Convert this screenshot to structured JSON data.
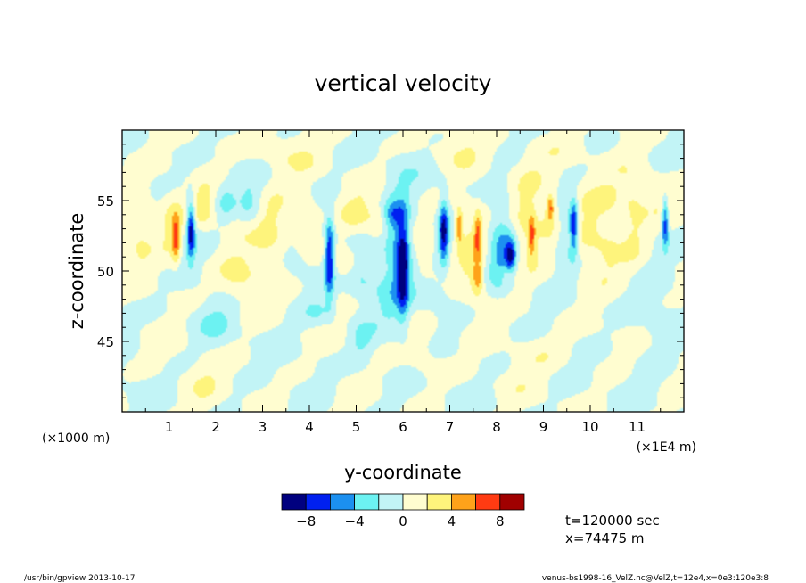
{
  "chart_data": {
    "type": "heatmap",
    "title": "vertical velocity",
    "xlabel": "y-coordinate",
    "ylabel": "z-coordinate",
    "x_unit_left": "(×1000 m)",
    "x_unit_right": "(×1E4 m)",
    "xlim": [
      0,
      12
    ],
    "ylim": [
      40,
      60
    ],
    "x_ticks": [
      1,
      2,
      3,
      4,
      5,
      6,
      7,
      8,
      9,
      10,
      11
    ],
    "x_tick_labels": [
      "1",
      "2",
      "3",
      "4",
      "5",
      "6",
      "7",
      "8",
      "9",
      "10",
      "11"
    ],
    "y_ticks": [
      45,
      50,
      55
    ],
    "y_tick_labels": [
      "45",
      "50",
      "55"
    ],
    "grid": false,
    "colorbar": {
      "levels": [
        -10,
        -8,
        -6,
        -4,
        -2,
        0,
        2,
        4,
        6,
        8,
        10
      ],
      "tick_values": [
        -8,
        -4,
        0,
        4,
        8
      ],
      "tick_labels": [
        "−8",
        "−4",
        "0",
        "4",
        "8"
      ],
      "colors": [
        "#00007f",
        "#0020f0",
        "#1c90f0",
        "#6cf2f2",
        "#c2f4f6",
        "#fffdd0",
        "#fef47c",
        "#fea21a",
        "#ff3b12",
        "#a00000"
      ]
    },
    "features": [
      {
        "y": 0.35,
        "z": 53.3,
        "sy": 0.25,
        "sz": 1.8,
        "amp": 2.5
      },
      {
        "y": 1.15,
        "z": 52.3,
        "sy": 0.06,
        "sz": 1.1,
        "amp": 6.0
      },
      {
        "y": 1.05,
        "z": 53.0,
        "sy": 0.18,
        "sz": 2.0,
        "amp": 2.5
      },
      {
        "y": 1.47,
        "z": 53.0,
        "sy": 0.06,
        "sz": 1.4,
        "amp": -8.5
      },
      {
        "y": 1.75,
        "z": 54.5,
        "sy": 0.15,
        "sz": 1.0,
        "amp": 2.5
      },
      {
        "y": 2.2,
        "z": 55.0,
        "sy": 0.15,
        "sz": 1.0,
        "amp": -2.3
      },
      {
        "y": 2.5,
        "z": 49.5,
        "sy": 0.3,
        "sz": 1.2,
        "amp": 2.4
      },
      {
        "y": 2.75,
        "z": 54.5,
        "sy": 0.18,
        "sz": 1.2,
        "amp": -2.6
      },
      {
        "y": 3.2,
        "z": 52.5,
        "sy": 0.35,
        "sz": 2.5,
        "amp": 2.8
      },
      {
        "y": 3.7,
        "z": 51.0,
        "sy": 0.25,
        "sz": 1.5,
        "amp": -2.2
      },
      {
        "y": 3.9,
        "z": 53.5,
        "sy": 0.2,
        "sz": 1.5,
        "amp": 2.5
      },
      {
        "y": 4.43,
        "z": 51.0,
        "sy": 0.07,
        "sz": 1.9,
        "amp": -8.5
      },
      {
        "y": 4.75,
        "z": 50.5,
        "sy": 0.2,
        "sz": 1.0,
        "amp": 2.5
      },
      {
        "y": 5.0,
        "z": 54.0,
        "sy": 0.25,
        "sz": 1.0,
        "amp": 2.4
      },
      {
        "y": 5.15,
        "z": 49.5,
        "sy": 0.25,
        "sz": 1.0,
        "amp": -2.2
      },
      {
        "y": 5.5,
        "z": 53.5,
        "sy": 0.18,
        "sz": 1.0,
        "amp": 2.5
      },
      {
        "y": 5.9,
        "z": 51.5,
        "sy": 0.25,
        "sz": 3.0,
        "amp": -5.5
      },
      {
        "y": 6.0,
        "z": 50.3,
        "sy": 0.08,
        "sz": 2.2,
        "amp": -7.5
      },
      {
        "y": 5.8,
        "z": 54.0,
        "sy": 0.15,
        "sz": 0.6,
        "amp": -3.0
      },
      {
        "y": 6.4,
        "z": 51.5,
        "sy": 0.2,
        "sz": 1.5,
        "amp": 2.6
      },
      {
        "y": 6.6,
        "z": 48.5,
        "sy": 0.3,
        "sz": 1.0,
        "amp": -2.2
      },
      {
        "y": 6.87,
        "z": 52.8,
        "sy": 0.07,
        "sz": 1.5,
        "amp": -8.5
      },
      {
        "y": 7.2,
        "z": 53.2,
        "sy": 0.05,
        "sz": 0.9,
        "amp": 5.5
      },
      {
        "y": 7.45,
        "z": 51.5,
        "sy": 0.25,
        "sz": 2.5,
        "amp": 2.6
      },
      {
        "y": 7.6,
        "z": 52.5,
        "sy": 0.05,
        "sz": 1.1,
        "amp": 5.0
      },
      {
        "y": 7.6,
        "z": 49.5,
        "sy": 0.08,
        "sz": 0.8,
        "amp": 4.5
      },
      {
        "y": 8.1,
        "z": 51.8,
        "sy": 0.2,
        "sz": 2.2,
        "amp": -4.5
      },
      {
        "y": 8.3,
        "z": 51.0,
        "sy": 0.08,
        "sz": 0.8,
        "amp": -7.0
      },
      {
        "y": 8.25,
        "z": 49.8,
        "sy": 0.12,
        "sz": 0.6,
        "amp": 3.0
      },
      {
        "y": 8.65,
        "z": 53.0,
        "sy": 0.25,
        "sz": 2.5,
        "amp": 2.8
      },
      {
        "y": 8.75,
        "z": 52.5,
        "sy": 0.05,
        "sz": 1.0,
        "amp": 5.0
      },
      {
        "y": 9.15,
        "z": 54.5,
        "sy": 0.05,
        "sz": 0.6,
        "amp": 5.0
      },
      {
        "y": 9.2,
        "z": 54.0,
        "sy": 0.2,
        "sz": 1.0,
        "amp": 2.5
      },
      {
        "y": 9.45,
        "z": 52.5,
        "sy": 0.15,
        "sz": 2.0,
        "amp": -3.2
      },
      {
        "y": 9.65,
        "z": 53.2,
        "sy": 0.06,
        "sz": 1.3,
        "amp": -8.0
      },
      {
        "y": 10.0,
        "z": 53.0,
        "sy": 0.2,
        "sz": 1.8,
        "amp": 2.5
      },
      {
        "y": 10.4,
        "z": 52.5,
        "sy": 0.2,
        "sz": 2.0,
        "amp": 2.6
      },
      {
        "y": 10.9,
        "z": 53.0,
        "sy": 0.2,
        "sz": 2.0,
        "amp": 2.4
      },
      {
        "y": 11.6,
        "z": 53.5,
        "sy": 0.05,
        "sz": 1.2,
        "amp": -7.5
      },
      {
        "y": 11.0,
        "z": 55.5,
        "sy": 0.8,
        "sz": 1.0,
        "amp": 1.3
      },
      {
        "y": 4.2,
        "z": 47.0,
        "sy": 0.25,
        "sz": 0.8,
        "amp": -2.2
      },
      {
        "y": 5.1,
        "z": 45.0,
        "sy": 0.2,
        "sz": 1.0,
        "amp": -2.2
      },
      {
        "y": 6.4,
        "z": 44.5,
        "sy": 0.25,
        "sz": 1.5,
        "amp": 1.3
      },
      {
        "y": 9.0,
        "z": 44.0,
        "sy": 0.5,
        "sz": 1.2,
        "amp": 1.3
      },
      {
        "y": 11.5,
        "z": 46.0,
        "sy": 0.3,
        "sz": 2.0,
        "amp": -1.5
      },
      {
        "y": 1.8,
        "z": 41.5,
        "sy": 0.3,
        "sz": 1.5,
        "amp": 1.3
      },
      {
        "y": 3.5,
        "z": 58.5,
        "sy": 0.5,
        "sz": 1.0,
        "amp": 1.3
      },
      {
        "y": 7.0,
        "z": 58.5,
        "sy": 0.5,
        "sz": 1.0,
        "amp": 1.2
      },
      {
        "y": 9.5,
        "z": 58.0,
        "sy": 0.6,
        "sz": 1.5,
        "amp": 1.2
      },
      {
        "y": 2.0,
        "z": 46.5,
        "sy": 0.3,
        "sz": 1.2,
        "amp": -1.5
      }
    ]
  },
  "info": {
    "time_label": "t=120000 sec",
    "x_label": "x=74475 m"
  },
  "footer": {
    "left": "/usr/bin/gpview  2013-10-17",
    "right": "venus-bs1998-16_VelZ.nc@VelZ,t=12e4,x=0e3:120e3:8"
  }
}
